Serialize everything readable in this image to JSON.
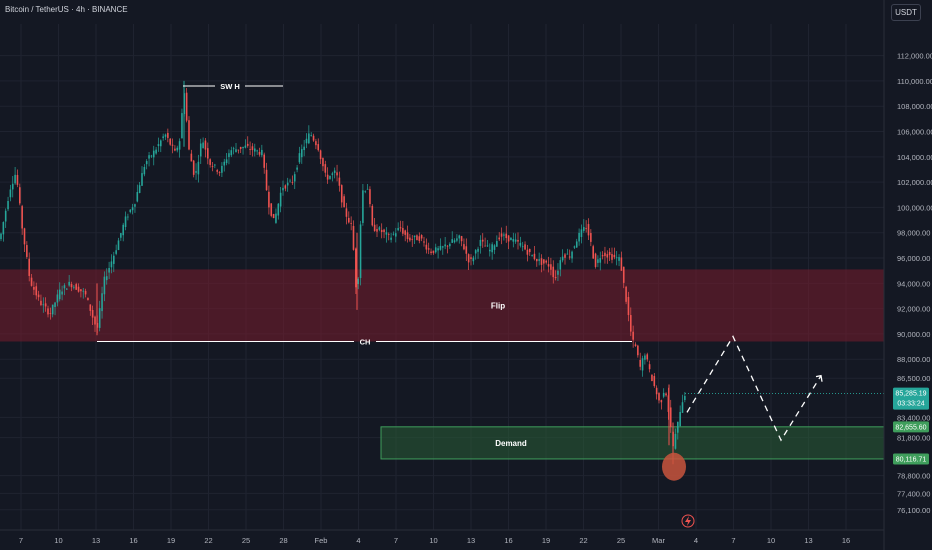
{
  "header": {
    "title": "Bitcoin / TetherUS · 4h · BINANCE",
    "currency": "USDT"
  },
  "colors": {
    "bg": "#141823",
    "grid": "#1f2330",
    "axis_text": "#b2b5be",
    "up": "#26a69a",
    "down": "#ef5350",
    "flip_zone": "rgba(120,30,45,0.55)",
    "flip_border": "#a33a4a",
    "demand_zone": "rgba(40,95,55,0.55)",
    "demand_border": "#3f9e5c",
    "annotation": "#ffffff",
    "circle": "#c8553d"
  },
  "chart_data": {
    "type": "candlestick",
    "symbol": "Bitcoin / TetherUS",
    "interval": "4h",
    "exchange": "BINANCE",
    "ylim": [
      74500,
      114500
    ],
    "y_ticks": [
      {
        "value": 112000,
        "label": "112,000.00"
      },
      {
        "value": 110000,
        "label": "110,000.00"
      },
      {
        "value": 108000,
        "label": "108,000.00"
      },
      {
        "value": 106000,
        "label": "106,000.00"
      },
      {
        "value": 104000,
        "label": "104,000.00"
      },
      {
        "value": 102000,
        "label": "102,000.00"
      },
      {
        "value": 100000,
        "label": "100,000.00"
      },
      {
        "value": 98000,
        "label": "98,000.00"
      },
      {
        "value": 96000,
        "label": "96,000.00"
      },
      {
        "value": 94000,
        "label": "94,000.00"
      },
      {
        "value": 92000,
        "label": "92,000.00"
      },
      {
        "value": 90000,
        "label": "90,000.00"
      },
      {
        "value": 88000,
        "label": "88,000.00"
      },
      {
        "value": 86500,
        "label": "86,500.00"
      },
      {
        "value": 83400,
        "label": "83,400.00"
      },
      {
        "value": 81800,
        "label": "81,800.00"
      },
      {
        "value": 78800,
        "label": "78,800.00"
      },
      {
        "value": 77400,
        "label": "77,400.00"
      },
      {
        "value": 76100,
        "label": "76,100.00"
      }
    ],
    "x_ticks": [
      "7",
      "10",
      "13",
      "16",
      "19",
      "22",
      "25",
      "28",
      "Feb",
      "4",
      "7",
      "10",
      "13",
      "16",
      "19",
      "22",
      "25",
      "Mar",
      "4",
      "7",
      "10",
      "13",
      "16"
    ],
    "price_labels": [
      {
        "value": 85285.19,
        "label": "85,285.19",
        "sub": "03:33:24",
        "color": "#26a69a"
      },
      {
        "value": 82655.6,
        "label": "82,655.60",
        "color": "#3f9e5c"
      },
      {
        "value": 80116.71,
        "label": "80,116.71",
        "color": "#3f9e5c"
      }
    ],
    "price_path": [
      [
        0,
        97500
      ],
      [
        10,
        101500
      ],
      [
        16,
        102800
      ],
      [
        22,
        98500
      ],
      [
        30,
        94200
      ],
      [
        40,
        92500
      ],
      [
        50,
        91600
      ],
      [
        60,
        93400
      ],
      [
        70,
        94000
      ],
      [
        85,
        93200
      ],
      [
        97,
        90300
      ],
      [
        104,
        94200
      ],
      [
        115,
        96500
      ],
      [
        125,
        99000
      ],
      [
        135,
        100500
      ],
      [
        145,
        103500
      ],
      [
        155,
        104500
      ],
      [
        165,
        105800
      ],
      [
        175,
        104300
      ],
      [
        180,
        105400
      ],
      [
        184,
        109500
      ],
      [
        189,
        104500
      ],
      [
        195,
        102300
      ],
      [
        202,
        105500
      ],
      [
        210,
        103500
      ],
      [
        220,
        102800
      ],
      [
        230,
        104500
      ],
      [
        245,
        104800
      ],
      [
        262,
        104300
      ],
      [
        268,
        100500
      ],
      [
        274,
        98800
      ],
      [
        282,
        101600
      ],
      [
        292,
        102000
      ],
      [
        300,
        104200
      ],
      [
        310,
        105900
      ],
      [
        318,
        104800
      ],
      [
        326,
        102300
      ],
      [
        336,
        102800
      ],
      [
        344,
        99800
      ],
      [
        352,
        98400
      ],
      [
        357,
        92500
      ],
      [
        362,
        101300
      ],
      [
        368,
        101600
      ],
      [
        372,
        98400
      ],
      [
        380,
        98200
      ],
      [
        390,
        97600
      ],
      [
        400,
        98400
      ],
      [
        408,
        97500
      ],
      [
        420,
        97600
      ],
      [
        430,
        96500
      ],
      [
        440,
        96700
      ],
      [
        450,
        97200
      ],
      [
        460,
        97600
      ],
      [
        470,
        95600
      ],
      [
        480,
        97300
      ],
      [
        490,
        96600
      ],
      [
        500,
        97800
      ],
      [
        510,
        97500
      ],
      [
        520,
        97100
      ],
      [
        530,
        96300
      ],
      [
        540,
        95700
      ],
      [
        550,
        95400
      ],
      [
        555,
        94300
      ],
      [
        562,
        96300
      ],
      [
        570,
        96200
      ],
      [
        578,
        97700
      ],
      [
        586,
        98500
      ],
      [
        590,
        97500
      ],
      [
        595,
        95400
      ],
      [
        602,
        96400
      ],
      [
        612,
        96100
      ],
      [
        620,
        95900
      ],
      [
        627,
        92200
      ],
      [
        632,
        89500
      ],
      [
        636,
        88900
      ],
      [
        640,
        87300
      ],
      [
        645,
        88500
      ],
      [
        650,
        86900
      ],
      [
        655,
        85700
      ],
      [
        660,
        84400
      ],
      [
        665,
        85900
      ],
      [
        669,
        83600
      ],
      [
        673,
        81100
      ],
      [
        677,
        82500
      ],
      [
        681,
        84400
      ],
      [
        685,
        85300
      ]
    ],
    "zones": [
      {
        "name": "Flip",
        "label": "Flip",
        "from_x": 0,
        "to_x": 884,
        "low": 89400,
        "high": 95100
      },
      {
        "name": "Demand",
        "label": "Demand",
        "from_x": 381,
        "to_x": 884,
        "low": 80116.71,
        "high": 82655.6
      }
    ],
    "annotations": {
      "swing_high": {
        "label": "SW H",
        "price": 109600
      },
      "change_of_character": {
        "label": "CH",
        "price": 89400
      },
      "projection": [
        [
          687,
          83800
        ],
        [
          733,
          89800
        ],
        [
          781,
          81600
        ],
        [
          821,
          86700
        ]
      ],
      "liquidity_sweep_price": 79500
    }
  }
}
